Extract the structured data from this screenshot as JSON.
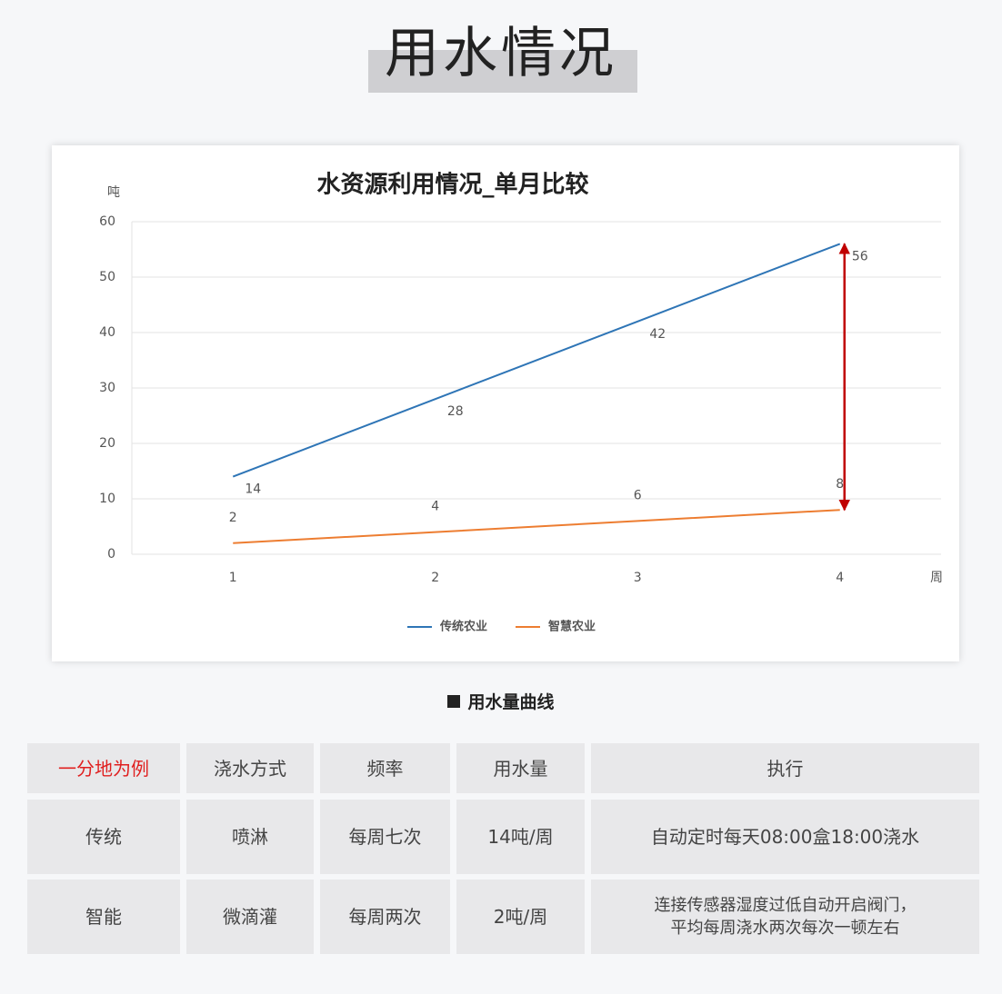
{
  "header": {
    "title": "用水情况"
  },
  "chart_data": {
    "type": "line",
    "title": "水资源利用情况_单月比较",
    "y_label": "吨",
    "x_label": "周",
    "categories": [
      "1",
      "2",
      "3",
      "4"
    ],
    "series": [
      {
        "name": "传统农业",
        "color": "#2e75b6",
        "values": [
          14,
          28,
          42,
          56
        ]
      },
      {
        "name": "智慧农业",
        "color": "#ed7d31",
        "values": [
          2,
          4,
          6,
          8
        ]
      }
    ],
    "ylim": [
      0,
      60
    ],
    "yticks": [
      0,
      10,
      20,
      30,
      40,
      50,
      60
    ],
    "grid": true,
    "legend": "bottom"
  },
  "caption": "用水量曲线",
  "table": {
    "header": [
      "一分地为例",
      "浇水方式",
      "频率",
      "用水量",
      "执行"
    ],
    "rows": [
      [
        "传统",
        "喷淋",
        "每周七次",
        "14吨/周",
        "自动定时每天08:00盒18:00浇水"
      ],
      [
        "智能",
        "微滴灌",
        "每周两次",
        "2吨/周",
        "连接传感器湿度过低自动开启阀门，\n平均每周浇水两次每次一顿左右"
      ]
    ]
  }
}
